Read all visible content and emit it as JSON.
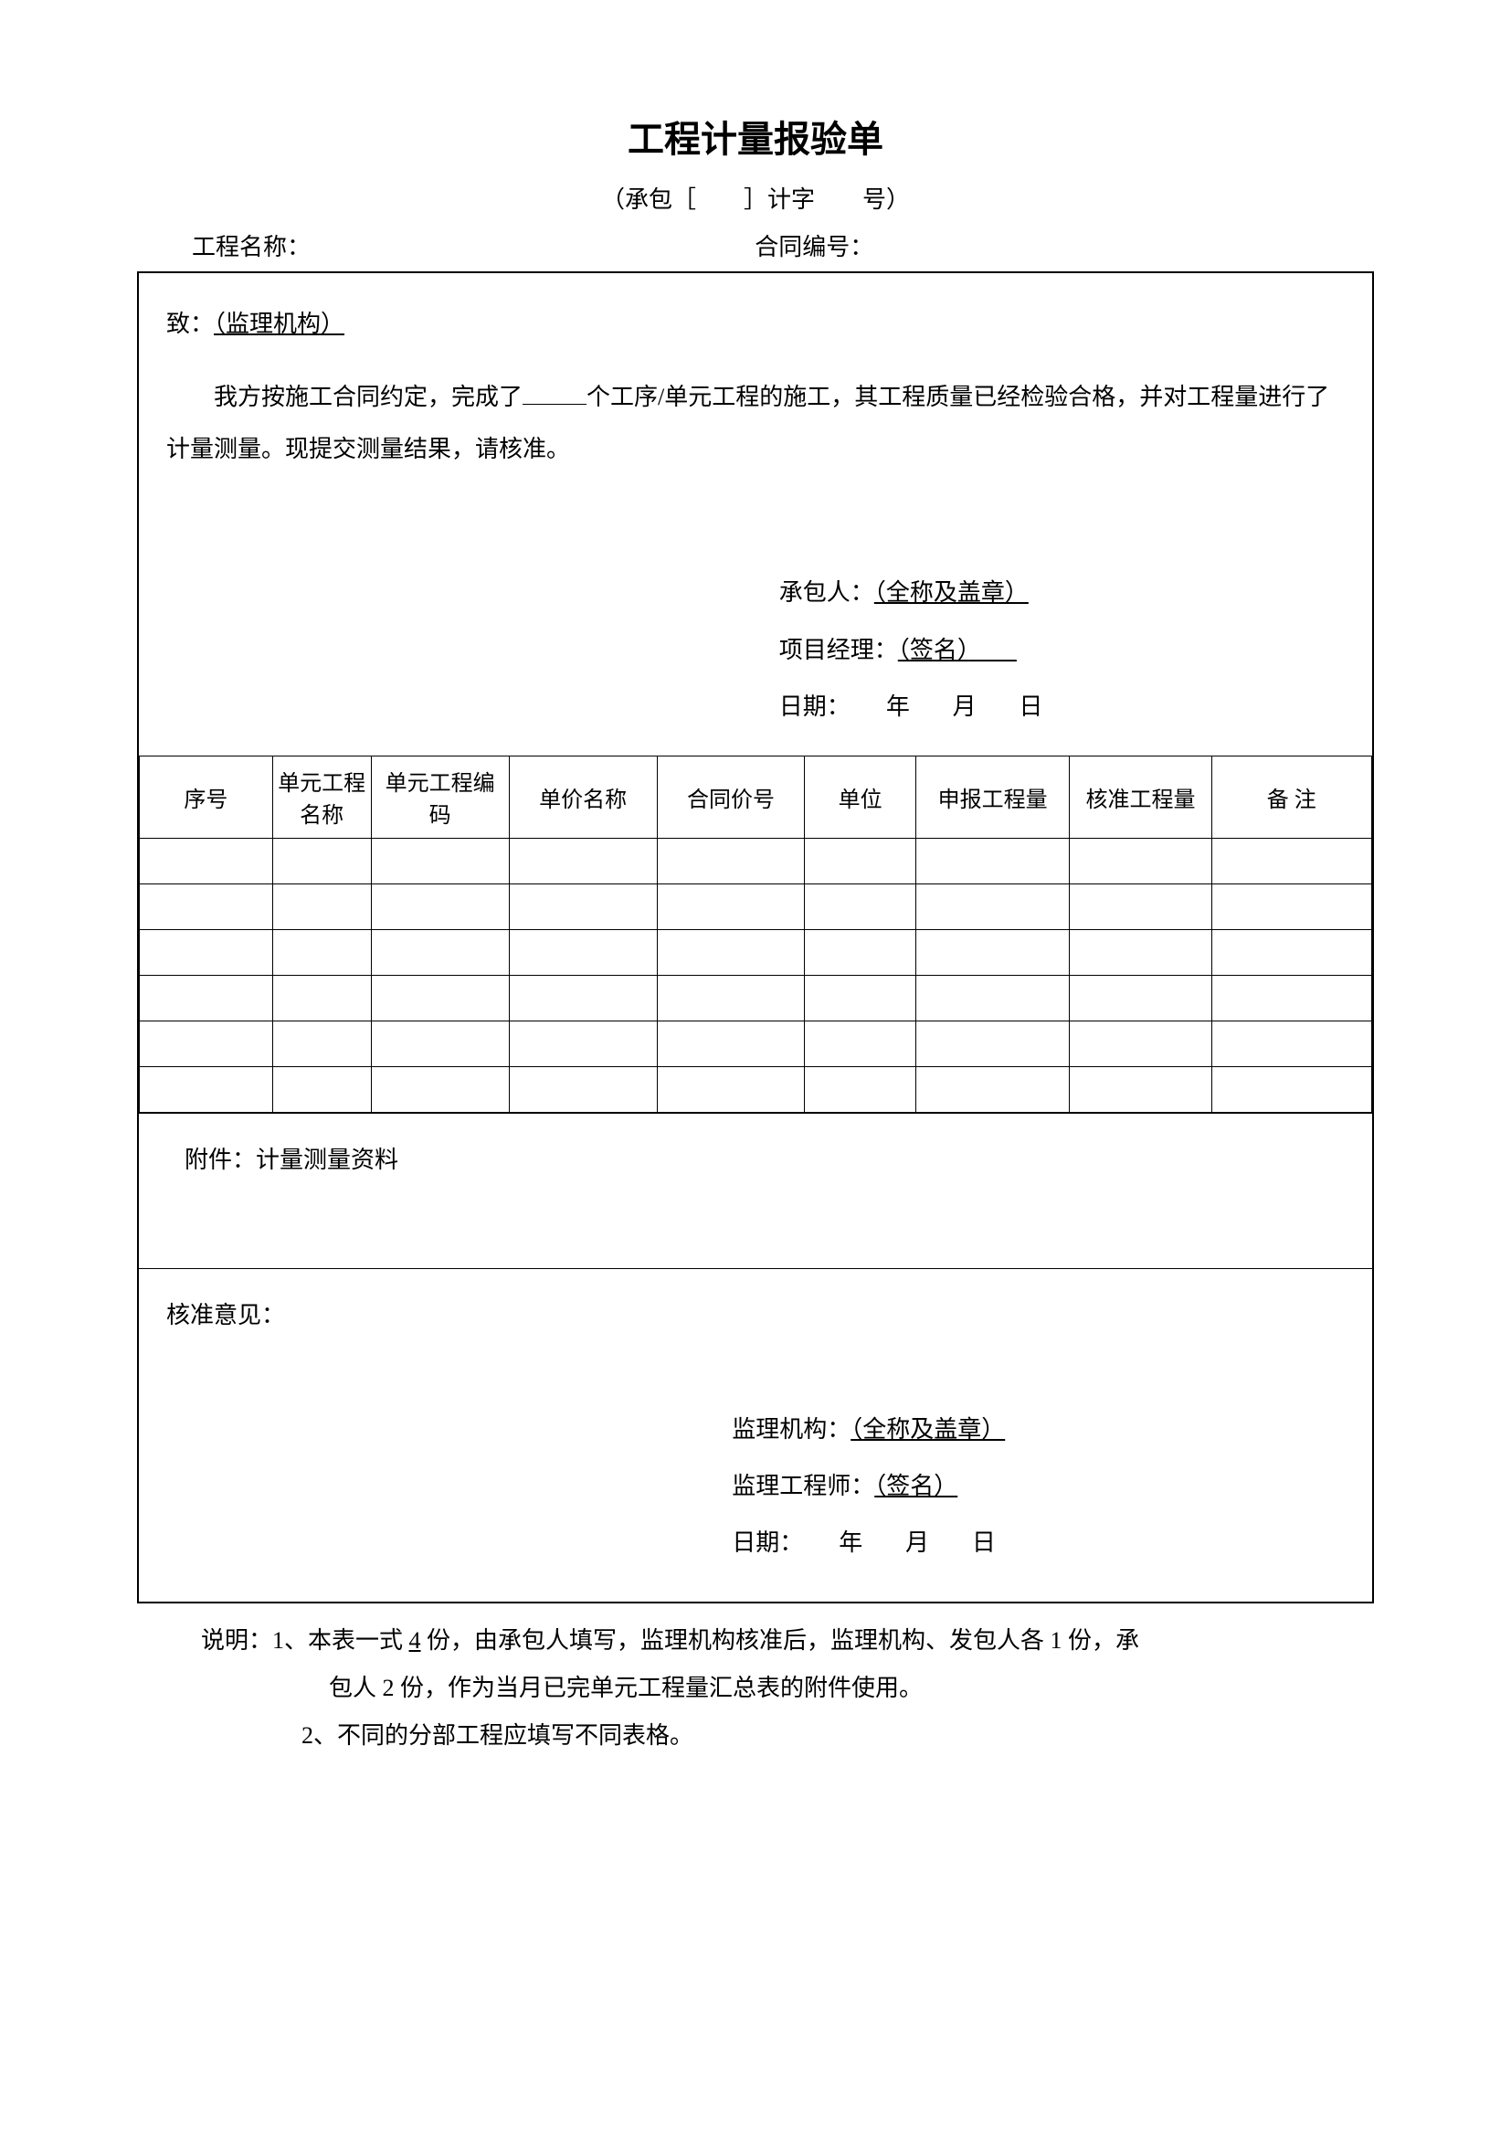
{
  "title": "工程计量报验单",
  "subtitle_prefix": "（承包［",
  "subtitle_mid": "］计字",
  "subtitle_suffix": "号）",
  "header": {
    "project_label": "工程名称：",
    "contract_label": "合同编号："
  },
  "section_to": {
    "greeting_prefix": "致：",
    "greeting_value": "（监理机构）",
    "body_1": "我方按施工合同约定，完成了",
    "body_2": "个工序/单元工程的施工，其工程质量已经检验合格，并对工程量进行了计量测量。现提交测量结果，请核准。"
  },
  "contractor_sig": {
    "contractor_label": "承包人：",
    "contractor_value": "（全称及盖章）",
    "pm_label": "项目经理：",
    "pm_value": "（签名）",
    "date_label": "日期：",
    "date_value": "年　月　日"
  },
  "table": {
    "headers": [
      "序号",
      "单元工程名称",
      "单元工程编码",
      "单价名称",
      "合同价号",
      "单位",
      "申报工程量",
      "核准工程量",
      "备 注"
    ],
    "row_count": 6
  },
  "attachment": {
    "label": "附件：计量测量资料"
  },
  "approval": {
    "label": "核准意见：",
    "org_label": "监理机构：",
    "org_value": "（全称及盖章）",
    "engineer_label": "监理工程师：",
    "engineer_value": "（签名）",
    "date_label": "日期：",
    "date_value": "年　月　日"
  },
  "notes": {
    "prefix": "说明：",
    "note1_a": "1、本表一式 ",
    "note1_copies": "4",
    "note1_b": " 份，由承包人填写，监理机构核准后，监理机构、发包人各 1 份，承",
    "note1_c": "包人 2 份，作为当月已完单元工程量汇总表的附件使用。",
    "note2": "2、不同的分部工程应填写不同表格。"
  }
}
